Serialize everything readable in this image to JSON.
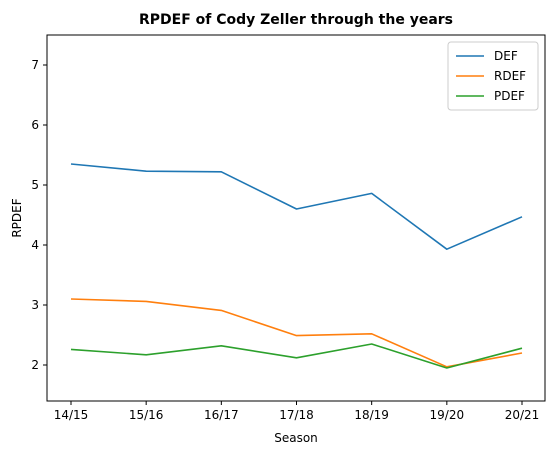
{
  "chart_data": {
    "type": "line",
    "title": "RPDEF of Cody Zeller through the years",
    "xlabel": "Season",
    "ylabel": "RPDEF",
    "categories": [
      "14/15",
      "15/16",
      "16/17",
      "17/18",
      "18/19",
      "19/20",
      "20/21"
    ],
    "ylim": [
      1.4,
      7.5
    ],
    "yticks": [
      2,
      3,
      4,
      5,
      6,
      7
    ],
    "grid": false,
    "legend_position": "top-right",
    "series": [
      {
        "name": "DEF",
        "color": "#1f77b4",
        "values": [
          5.35,
          5.23,
          5.22,
          4.6,
          4.86,
          3.93,
          4.47
        ]
      },
      {
        "name": "RDEF",
        "color": "#ff7f0e",
        "values": [
          3.1,
          3.06,
          2.91,
          2.49,
          2.52,
          1.97,
          2.2
        ]
      },
      {
        "name": "PDEF",
        "color": "#2ca02c",
        "values": [
          2.26,
          2.17,
          2.32,
          2.12,
          2.35,
          1.95,
          2.28
        ]
      }
    ]
  }
}
